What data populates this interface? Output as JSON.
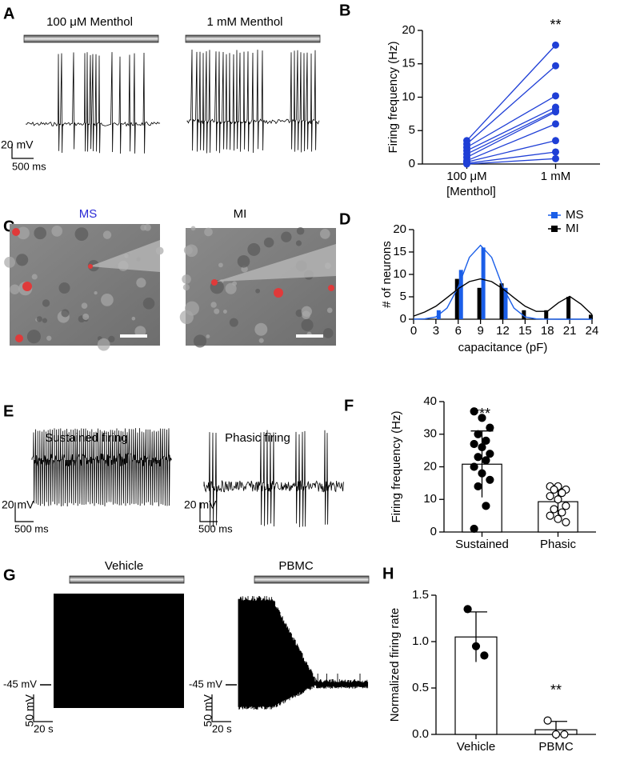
{
  "panels": {
    "A": {
      "letter": "A",
      "bars": [
        "100 μM Menthol",
        "1 mM Menthol"
      ],
      "scale": [
        "20 mV",
        "500 ms"
      ]
    },
    "B": {
      "letter": "B"
    },
    "C": {
      "letter": "C",
      "images": [
        "MS",
        "MI"
      ]
    },
    "D": {
      "letter": "D"
    },
    "E": {
      "letter": "E",
      "traces": [
        "Sustained firing",
        "Phasic firing"
      ],
      "scale": [
        "20 mV",
        "500 ms",
        "20 mV",
        "500 ms"
      ]
    },
    "F": {
      "letter": "F"
    },
    "G": {
      "letter": "G",
      "bars": [
        "Vehicle",
        "PBMC"
      ],
      "holding": [
        "-45 mV",
        "-45 mV"
      ],
      "scale": [
        "50 mV",
        "20 s",
        "50 mV",
        "20 s"
      ]
    },
    "H": {
      "letter": "H"
    }
  },
  "chart_data": [
    {
      "type": "line",
      "y_label": "Firing frequency (Hz)",
      "x_label": "[Menthol]",
      "annotation": "**",
      "categories": [
        "100 μM",
        "1 mM"
      ],
      "ylim": [
        0,
        20
      ],
      "yticks": [
        0,
        5,
        10,
        15,
        20
      ],
      "series": [
        {
          "color": "#1f3fd6",
          "values": [
            3.5,
            17.8
          ]
        },
        {
          "color": "#1f3fd6",
          "values": [
            3.0,
            14.7
          ]
        },
        {
          "color": "#1f3fd6",
          "values": [
            2.5,
            10.2
          ]
        },
        {
          "color": "#1f3fd6",
          "values": [
            2.0,
            8.5
          ]
        },
        {
          "color": "#1f3fd6",
          "values": [
            1.5,
            8.0
          ]
        },
        {
          "color": "#1f3fd6",
          "values": [
            1.0,
            7.8
          ]
        },
        {
          "color": "#1f3fd6",
          "values": [
            0.5,
            6.0
          ]
        },
        {
          "color": "#1f3fd6",
          "values": [
            0.3,
            3.5
          ]
        },
        {
          "color": "#1f3fd6",
          "values": [
            0.1,
            1.8
          ]
        },
        {
          "color": "#1f3fd6",
          "values": [
            0,
            0.8
          ]
        }
      ]
    },
    {
      "type": "bar",
      "y_label": "# of neurons",
      "x_label": "capacitance (pF)",
      "legend": "top-right",
      "x": [
        3,
        6,
        9,
        12,
        15,
        18,
        21,
        24
      ],
      "xlim": [
        0,
        24
      ],
      "xticks": [
        0,
        3,
        6,
        9,
        12,
        15,
        18,
        21,
        24
      ],
      "ylim": [
        0,
        20
      ],
      "yticks": [
        0,
        5,
        10,
        15,
        20
      ],
      "series": [
        {
          "name": "MS",
          "color": "#1a5ee8",
          "values": [
            2,
            11,
            16,
            7,
            0,
            0,
            0,
            0
          ]
        },
        {
          "name": "MI",
          "color": "#000000",
          "values": [
            0,
            9,
            7,
            8,
            2,
            2,
            5,
            1
          ]
        }
      ],
      "fits": [
        {
          "color": "#1a5ee8",
          "x": [
            0,
            1.5,
            3,
            4.5,
            6,
            7.5,
            9,
            10.5,
            12,
            13.5,
            15,
            16.5,
            18,
            19.5,
            21,
            22.5,
            24
          ],
          "values": [
            0.01,
            0.08,
            0.5,
            2.5,
            7.2,
            13.8,
            16.5,
            13.8,
            7.2,
            2.5,
            0.5,
            0.08,
            0.01,
            0,
            0,
            0,
            0
          ]
        },
        {
          "color": "#000000",
          "x": [
            0,
            1.5,
            3,
            4.5,
            6,
            7.5,
            9,
            10.5,
            12,
            13.5,
            15,
            16.5,
            18,
            19.5,
            21,
            22.5,
            24
          ],
          "values": [
            0.7,
            1.6,
            2.9,
            4.8,
            6.8,
            8.4,
            9,
            8.4,
            6.8,
            4.8,
            2.9,
            1.75,
            1.75,
            3.7,
            5.1,
            3.4,
            1.05
          ]
        }
      ]
    },
    {
      "type": "bar",
      "y_label": "Firing frequency (Hz)",
      "annotation": "***",
      "color": "#ffffff",
      "categories": [
        "Sustained",
        "Phasic"
      ],
      "values": [
        20.8,
        9.3
      ],
      "errors": [
        10.2,
        4.0
      ],
      "points": [
        [
          37,
          35,
          32,
          30,
          28,
          27,
          26,
          24,
          23,
          22,
          20,
          18,
          16,
          14,
          8,
          1
        ],
        [
          14,
          14,
          13,
          13,
          12,
          11,
          10,
          8,
          7,
          6,
          5,
          4,
          3
        ]
      ],
      "ylim": [
        0,
        40
      ],
      "yticks": [
        0,
        10,
        20,
        30,
        40
      ]
    },
    {
      "type": "bar",
      "y_label": "Normalized firing rate",
      "annotation": "**",
      "color": "#ffffff",
      "categories": [
        "Vehicle",
        "PBMC"
      ],
      "values": [
        1.05,
        0.05
      ],
      "errors": [
        0.27,
        0.09
      ],
      "points": [
        [
          1.35,
          0.95,
          0.85
        ],
        [
          0.15,
          0.0,
          0.0
        ]
      ],
      "ylim": [
        0,
        1.5
      ],
      "yticks": [
        {
          "value": 0,
          "label": "0.0"
        },
        0.5,
        {
          "value": 1,
          "label": "1.0"
        },
        1.5
      ]
    }
  ]
}
